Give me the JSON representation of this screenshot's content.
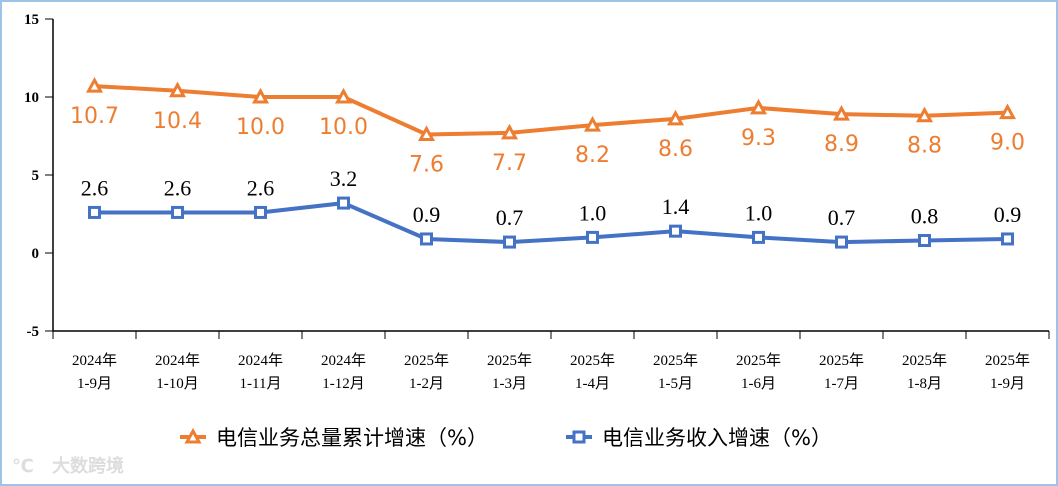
{
  "chart_data": {
    "type": "line",
    "categories": [
      [
        "2024年",
        "1-9月"
      ],
      [
        "2024年",
        "1-10月"
      ],
      [
        "2024年",
        "1-11月"
      ],
      [
        "2024年",
        "1-12月"
      ],
      [
        "2025年",
        "1-2月"
      ],
      [
        "2025年",
        "1-3月"
      ],
      [
        "2025年",
        "1-4月"
      ],
      [
        "2025年",
        "1-5月"
      ],
      [
        "2025年",
        "1-6月"
      ],
      [
        "2025年",
        "1-7月"
      ],
      [
        "2025年",
        "1-8月"
      ],
      [
        "2025年",
        "1-9月"
      ]
    ],
    "series": [
      {
        "name": "电信业务总量累计增速（%）",
        "color": "#ed7d31",
        "marker": "triangle",
        "values": [
          10.7,
          10.4,
          10.0,
          10.0,
          7.6,
          7.7,
          8.2,
          8.6,
          9.3,
          8.9,
          8.8,
          9.0
        ]
      },
      {
        "name": "电信业务收入增速（%）",
        "color": "#4472c4",
        "marker": "square",
        "values": [
          2.6,
          2.6,
          2.6,
          3.2,
          0.9,
          0.7,
          1.0,
          1.4,
          1.0,
          0.7,
          0.8,
          0.9
        ]
      }
    ],
    "ylim": [
      -5,
      15
    ],
    "yticks": [
      "15",
      "10",
      "5",
      "0",
      "-5"
    ],
    "grid": false,
    "legend": "bottom"
  },
  "watermark": "大数跨境"
}
